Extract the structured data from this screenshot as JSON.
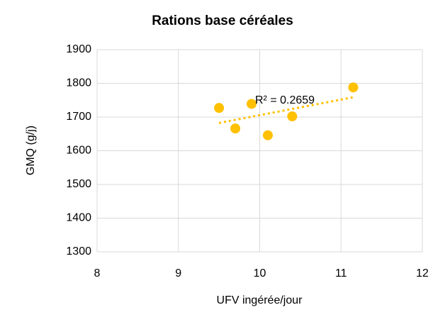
{
  "chart_data": {
    "type": "scatter",
    "title": "Rations base céréales",
    "x_label": "UFV ingérée/jour",
    "y_label": "GMQ (g/j)",
    "series": [
      {
        "name": "GMQ",
        "color": "#ffc000",
        "x": [
          9.5,
          9.7,
          9.9,
          10.1,
          10.4,
          11.15
        ],
        "values": [
          1727,
          1666,
          1739,
          1646,
          1702,
          1788
        ]
      }
    ],
    "trendline": {
      "type": "linear",
      "annotation": "R² = 0.2659"
    },
    "xlim": [
      8,
      12
    ],
    "xticks": [
      8,
      9,
      10,
      11,
      12
    ],
    "ylim": [
      1300,
      1900
    ],
    "yticks": [
      1300,
      1400,
      1500,
      1600,
      1700,
      1800,
      1900
    ],
    "grid": true
  }
}
